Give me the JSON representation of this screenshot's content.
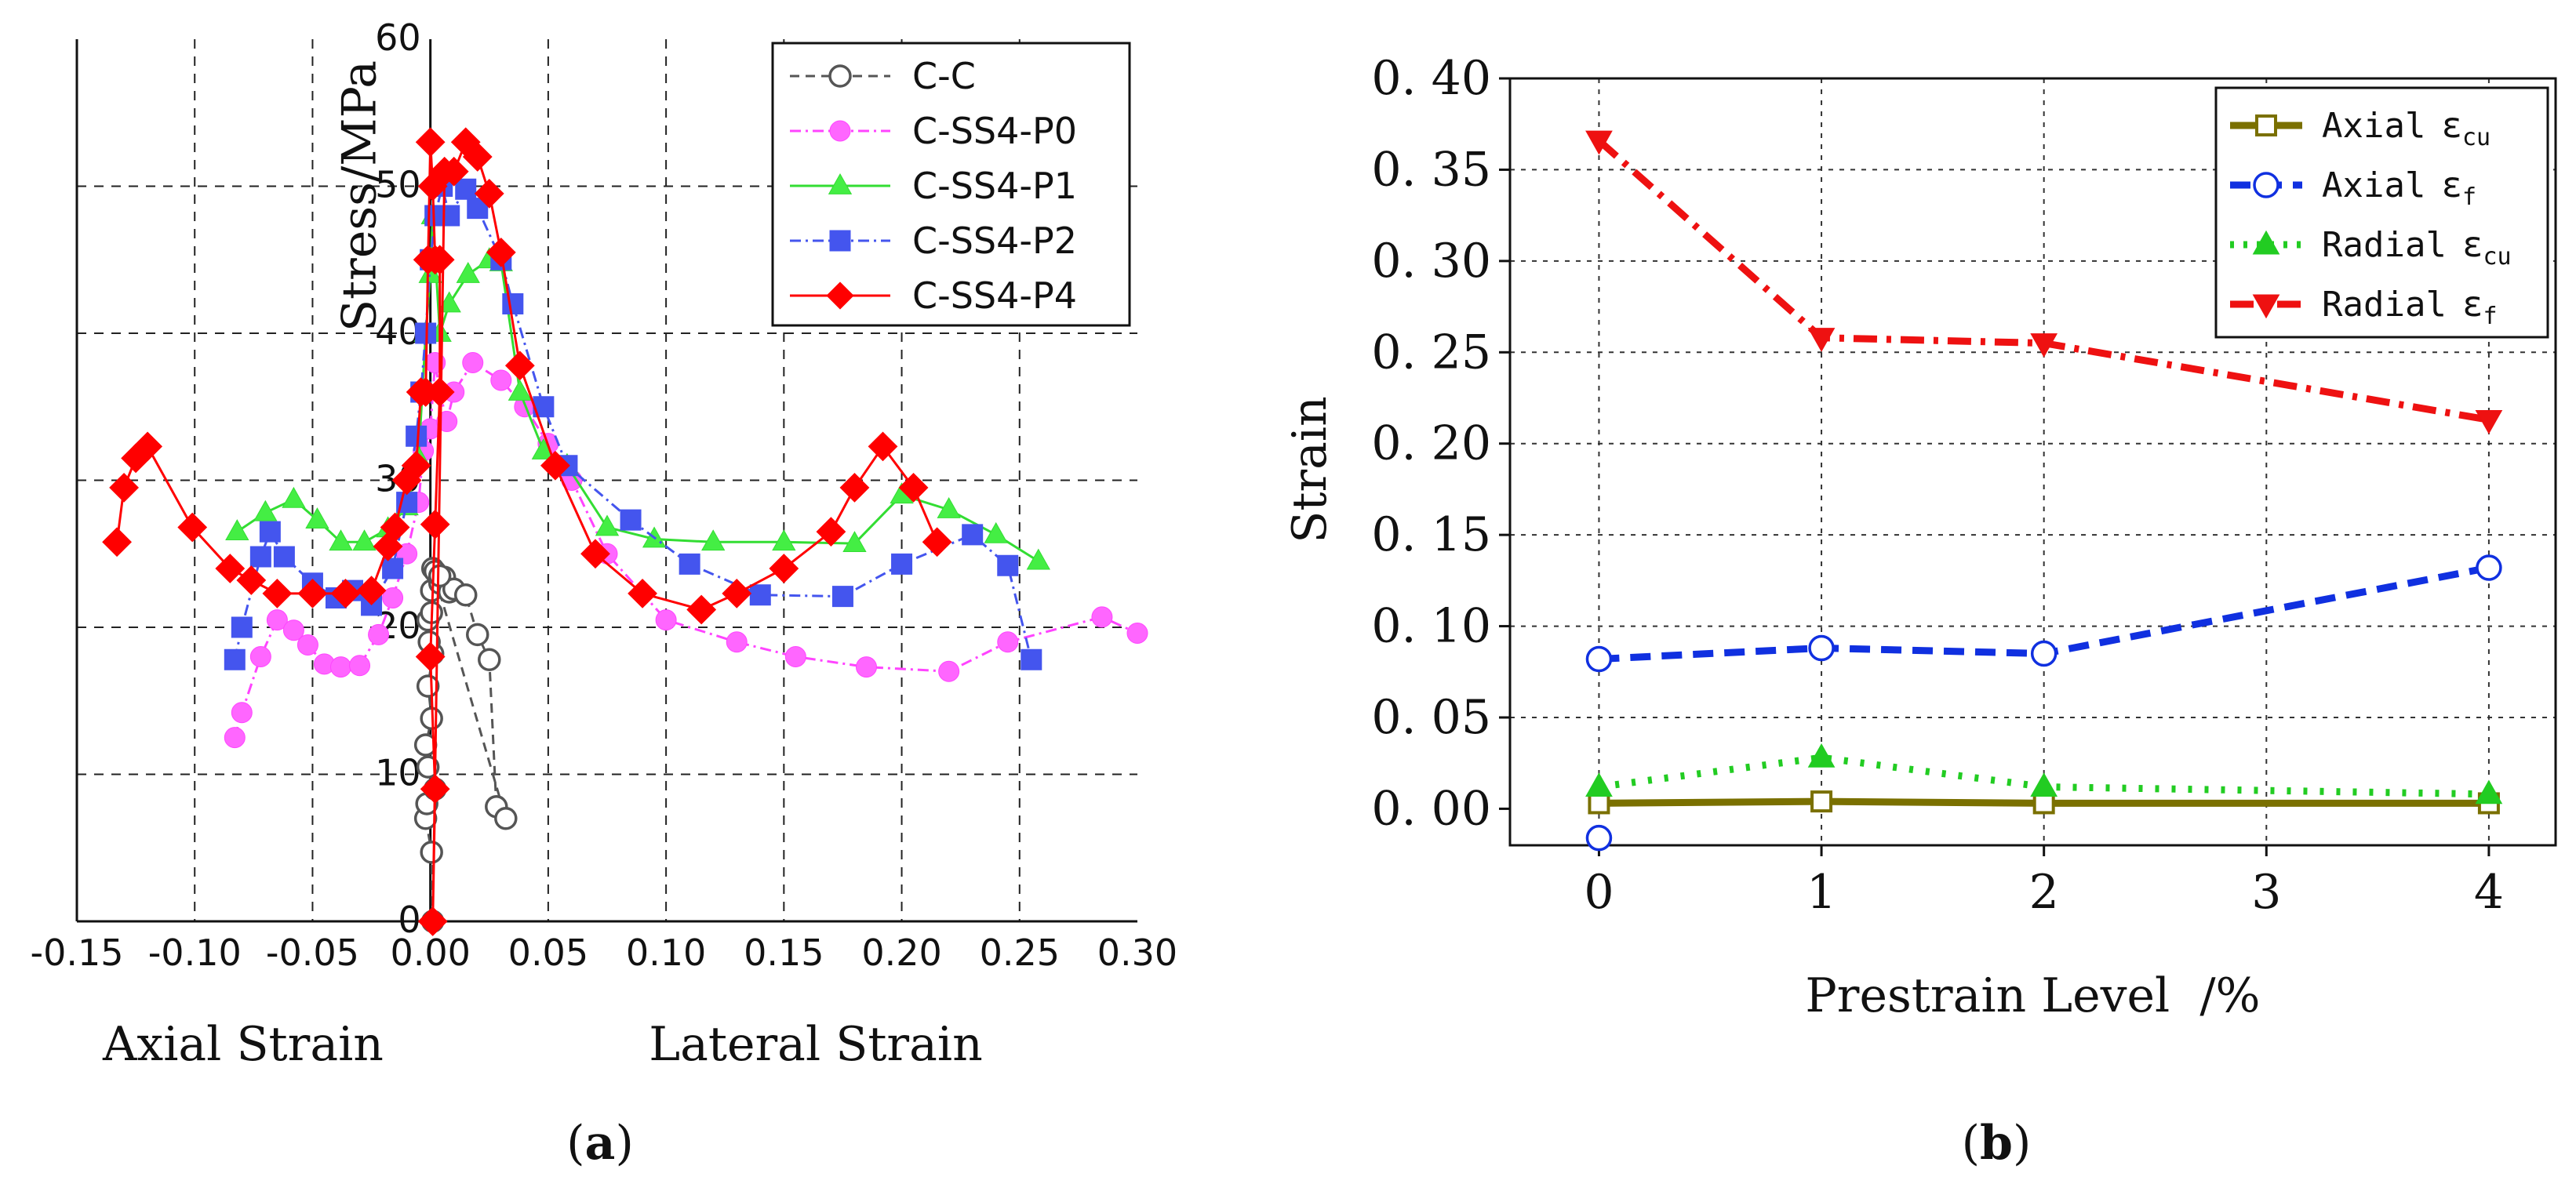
{
  "chart_data": [
    {
      "id": "a",
      "type": "line",
      "ylabel": "Stress/MPa",
      "xlim": [
        -0.15,
        0.3
      ],
      "ylim": [
        0,
        60
      ],
      "grid": "dashed",
      "legend_position": "top-right",
      "x_ticks": [
        "-0.15",
        "-0.10",
        "-0.05",
        "0.00",
        "0.05",
        "0.10",
        "0.15",
        "0.20",
        "0.25",
        "0.30"
      ],
      "y_ticks": [
        "0",
        "10",
        "20",
        "30",
        "40",
        "50",
        "60"
      ],
      "x_ticks_values": [
        -0.15,
        -0.1,
        -0.05,
        0.0,
        0.05,
        0.1,
        0.15,
        0.2,
        0.25,
        0.3
      ],
      "y_ticks_values": [
        0,
        10,
        20,
        30,
        40,
        50,
        60
      ],
      "region_labels": [
        "Axial Strain",
        "Lateral Strain"
      ],
      "panel_label": [
        "(",
        "a",
        ")"
      ],
      "series": [
        {
          "name": "C-C",
          "color": "#555555",
          "dash": "12,8",
          "marker": "open-circle",
          "fill": "none",
          "points": [
            [
              0.001,
              0
            ],
            [
              0.0005,
              4.7
            ],
            [
              -0.002,
              7
            ],
            [
              -0.0015,
              8
            ],
            [
              0.002,
              9
            ],
            [
              -0.001,
              10.5
            ],
            [
              -0.002,
              12
            ],
            [
              0.0005,
              13.8
            ],
            [
              -0.001,
              16
            ],
            [
              0.001,
              18.2
            ],
            [
              -0.001,
              20.5
            ],
            [
              0.0005,
              22.5
            ],
            [
              0.004,
              23
            ],
            [
              0.006,
              23.4
            ],
            [
              0.008,
              22.4
            ],
            [
              0.01,
              22.6
            ],
            [
              0.015,
              22.2
            ],
            [
              0.02,
              19.5
            ],
            [
              0.025,
              17.8
            ],
            [
              0.028,
              7.8
            ],
            [
              0.032,
              7
            ],
            [
              0.001,
              24
            ],
            [
              0.002,
              23.8
            ],
            [
              0.004,
              23.5
            ],
            [
              0.0005,
              21
            ],
            [
              -0.0005,
              19
            ]
          ]
        },
        {
          "name": "C-SS4-P0",
          "color": "#ff44ff",
          "dash": "14,6,3,6",
          "marker": "circle",
          "fill": "#ff66ff",
          "points": [
            [
              -0.083,
              12.5
            ],
            [
              -0.08,
              14.2
            ],
            [
              -0.072,
              18
            ],
            [
              -0.065,
              20.5
            ],
            [
              -0.058,
              19.8
            ],
            [
              -0.052,
              18.8
            ],
            [
              -0.045,
              17.5
            ],
            [
              -0.038,
              17.3
            ],
            [
              -0.03,
              17.4
            ],
            [
              -0.022,
              19.5
            ],
            [
              -0.016,
              22
            ],
            [
              -0.01,
              25
            ],
            [
              -0.005,
              28.5
            ],
            [
              -0.003,
              32
            ],
            [
              0.0,
              33.5
            ],
            [
              0.002,
              38
            ],
            [
              0.004,
              36
            ],
            [
              0.007,
              34
            ],
            [
              0.01,
              36
            ],
            [
              0.018,
              38
            ],
            [
              0.03,
              36.8
            ],
            [
              0.04,
              35
            ],
            [
              0.05,
              32.5
            ],
            [
              0.06,
              30
            ],
            [
              0.075,
              25
            ],
            [
              0.1,
              20.5
            ],
            [
              0.13,
              19
            ],
            [
              0.155,
              18
            ],
            [
              0.185,
              17.3
            ],
            [
              0.22,
              17
            ],
            [
              0.245,
              19
            ],
            [
              0.285,
              20.7
            ],
            [
              0.3,
              19.6
            ]
          ]
        },
        {
          "name": "C-SS4-P1",
          "color": "#33dd33",
          "dash": "none",
          "marker": "triangle",
          "fill": "#44ee44",
          "points": [
            [
              -0.082,
              26.5
            ],
            [
              -0.07,
              27.8
            ],
            [
              -0.058,
              28.7
            ],
            [
              -0.048,
              27.3
            ],
            [
              -0.038,
              25.8
            ],
            [
              -0.028,
              25.8
            ],
            [
              -0.018,
              26.7
            ],
            [
              -0.01,
              28.2
            ],
            [
              -0.005,
              31.5
            ],
            [
              -0.002,
              40
            ],
            [
              0.0,
              44
            ],
            [
              0.001,
              48
            ],
            [
              0.004,
              40
            ],
            [
              0.008,
              42
            ],
            [
              0.016,
              44
            ],
            [
              0.025,
              45
            ],
            [
              0.03,
              44.8
            ],
            [
              0.038,
              36
            ],
            [
              0.048,
              32
            ],
            [
              0.058,
              31
            ],
            [
              0.075,
              26.8
            ],
            [
              0.095,
              26
            ],
            [
              0.12,
              25.8
            ],
            [
              0.15,
              25.8
            ],
            [
              0.18,
              25.7
            ],
            [
              0.2,
              29
            ],
            [
              0.22,
              28
            ],
            [
              0.24,
              26.3
            ],
            [
              0.258,
              24.5
            ]
          ]
        },
        {
          "name": "C-SS4-P2",
          "color": "#4455ee",
          "dash": "14,6,3,6",
          "marker": "square",
          "fill": "#4455ee",
          "points": [
            [
              -0.083,
              17.8
            ],
            [
              -0.08,
              20
            ],
            [
              -0.072,
              24.8
            ],
            [
              -0.068,
              26.5
            ],
            [
              -0.062,
              24.8
            ],
            [
              -0.05,
              23
            ],
            [
              -0.04,
              22
            ],
            [
              -0.033,
              22.5
            ],
            [
              -0.025,
              21.5
            ],
            [
              -0.016,
              24
            ],
            [
              -0.01,
              28.5
            ],
            [
              -0.006,
              33
            ],
            [
              -0.004,
              36
            ],
            [
              -0.002,
              40
            ],
            [
              0.0,
              45
            ],
            [
              0.002,
              48
            ],
            [
              0.005,
              50
            ],
            [
              0.008,
              48
            ],
            [
              0.015,
              49.8
            ],
            [
              0.02,
              48.5
            ],
            [
              0.03,
              45
            ],
            [
              0.035,
              42
            ],
            [
              0.048,
              35
            ],
            [
              0.058,
              31
            ],
            [
              0.085,
              27.3
            ],
            [
              0.11,
              24.3
            ],
            [
              0.14,
              22.2
            ],
            [
              0.175,
              22.1
            ],
            [
              0.2,
              24.3
            ],
            [
              0.23,
              26.3
            ],
            [
              0.245,
              24.2
            ],
            [
              0.255,
              17.8
            ]
          ]
        },
        {
          "name": "C-SS4-P4",
          "color": "#ff0000",
          "dash": "none",
          "marker": "diamond",
          "fill": "#ff0000",
          "points": [
            [
              -0.133,
              25.8
            ],
            [
              -0.13,
              29.5
            ],
            [
              -0.125,
              31.5
            ],
            [
              -0.12,
              32.3
            ],
            [
              -0.101,
              26.8
            ],
            [
              -0.085,
              24
            ],
            [
              -0.076,
              23.2
            ],
            [
              -0.065,
              22.3
            ],
            [
              -0.05,
              22.3
            ],
            [
              -0.036,
              22.3
            ],
            [
              -0.025,
              22.5
            ],
            [
              -0.018,
              25.5
            ],
            [
              -0.015,
              26.8
            ],
            [
              -0.01,
              30
            ],
            [
              -0.006,
              31
            ],
            [
              -0.004,
              36
            ],
            [
              -0.002,
              36
            ],
            [
              -0.001,
              45
            ],
            [
              0.0,
              53
            ],
            [
              0.001,
              50
            ],
            [
              0.002,
              45
            ],
            [
              0.004,
              45
            ],
            [
              0.004,
              36
            ],
            [
              0.002,
              27
            ],
            [
              0.0,
              18
            ],
            [
              0.002,
              9
            ],
            [
              0.001,
              0
            ],
            [
              0.006,
              51
            ],
            [
              0.01,
              51
            ],
            [
              0.015,
              53
            ],
            [
              0.02,
              52
            ],
            [
              0.025,
              49.5
            ],
            [
              0.03,
              45.5
            ],
            [
              0.038,
              37.8
            ],
            [
              0.053,
              31
            ],
            [
              0.07,
              25
            ],
            [
              0.09,
              22.3
            ],
            [
              0.115,
              21.2
            ],
            [
              0.13,
              22.3
            ],
            [
              0.15,
              24
            ],
            [
              0.17,
              26.5
            ],
            [
              0.18,
              29.5
            ],
            [
              0.192,
              32.3
            ],
            [
              0.205,
              29.5
            ],
            [
              0.215,
              25.8
            ]
          ]
        }
      ]
    },
    {
      "id": "b",
      "type": "line",
      "xlabel": "Prestrain Level  /%",
      "ylabel": "Strain",
      "xlim": [
        -0.4,
        4.3
      ],
      "ylim": [
        -0.02,
        0.4
      ],
      "grid": "dashed",
      "legend_position": "top-right",
      "x_ticks": [
        "0",
        "1",
        "2",
        "3",
        "4"
      ],
      "y_ticks": [
        "0. 00",
        "0. 05",
        "0. 10",
        "0. 15",
        "0. 20",
        "0. 25",
        "0. 30",
        "0. 35",
        "0. 40"
      ],
      "x_ticks_values": [
        0,
        1,
        2,
        3,
        4
      ],
      "y_ticks_values": [
        0.0,
        0.05,
        0.1,
        0.15,
        0.2,
        0.25,
        0.3,
        0.35,
        0.4
      ],
      "panel_label": [
        "(",
        "b",
        ")"
      ],
      "series": [
        {
          "name": "Axial",
          "subscript": "cu",
          "symbol": "ε",
          "color": "#7a7000",
          "dash": "none",
          "width": 9,
          "marker": "open-square",
          "x": [
            0,
            1,
            2,
            4
          ],
          "values": [
            0.003,
            0.004,
            0.003,
            0.003
          ]
        },
        {
          "name": "Axial",
          "subscript": "f",
          "symbol": "ε",
          "color": "#1030e0",
          "dash": "26,14",
          "width": 9,
          "marker": "open-circle",
          "x": [
            0,
            1,
            2,
            4
          ],
          "values": [
            0.082,
            0.088,
            0.085,
            0.132
          ]
        },
        {
          "name": "Radial",
          "subscript": "cu",
          "symbol": "ε",
          "color": "#22cc22",
          "dash": "5,16",
          "width": 9,
          "marker": "triangle",
          "x": [
            0,
            1,
            2,
            4
          ],
          "values": [
            0.012,
            0.028,
            0.012,
            0.008
          ]
        },
        {
          "name": "Radial",
          "subscript": "f",
          "symbol": "ε",
          "color": "#ee1111",
          "dash": "30,12,6,12",
          "width": 9,
          "marker": "triangle-down",
          "x": [
            0,
            1,
            2,
            4
          ],
          "values": [
            0.366,
            0.258,
            0.255,
            0.213
          ]
        }
      ],
      "extra_marks": [
        {
          "marker": "open-circle",
          "color": "#1030e0",
          "x": 0,
          "value": -0.016
        }
      ]
    }
  ]
}
